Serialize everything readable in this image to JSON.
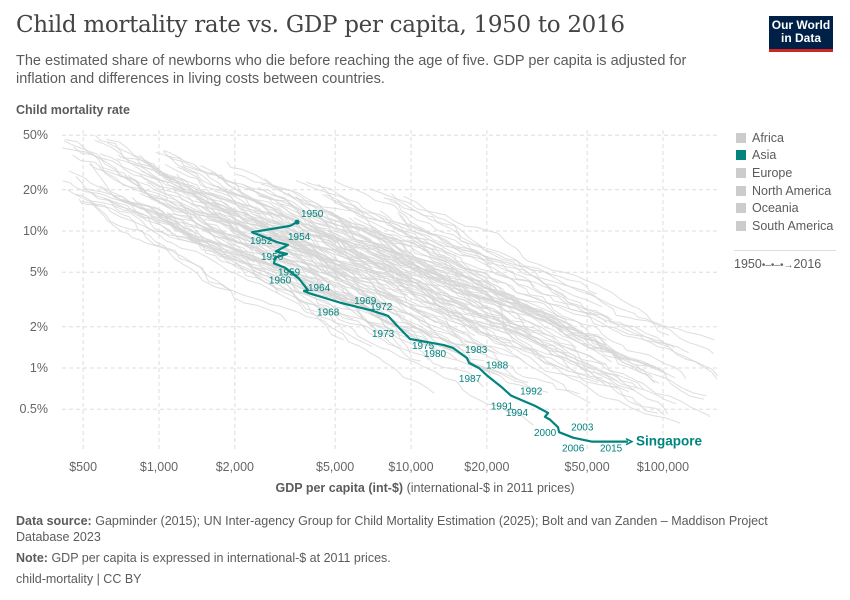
{
  "header": {
    "title": "Child mortality rate vs. GDP per capita, 1950 to 2016",
    "subtitle": "The estimated share of newborns who die before reaching the age of five. GDP per capita is adjusted for inflation and differences in living costs between countries.",
    "logo": "Our World in Data"
  },
  "legend": {
    "items": [
      {
        "label": "Africa",
        "color": "#cccccc"
      },
      {
        "label": "Asia",
        "color": "#00847e"
      },
      {
        "label": "Europe",
        "color": "#cccccc"
      },
      {
        "label": "North America",
        "color": "#cccccc"
      },
      {
        "label": "Oceania",
        "color": "#cccccc"
      },
      {
        "label": "South America",
        "color": "#cccccc"
      }
    ],
    "time_start": "1950",
    "time_end": "2016"
  },
  "footer": {
    "source_label": "Data source:",
    "source": "Gapminder (2015); UN Inter-agency Group for Child Mortality Estimation (2025); Bolt and van Zanden – Maddison Project Database 2023",
    "note_label": "Note:",
    "note": "GDP per capita is expressed in international-$ at 2011 prices.",
    "credit": "child-mortality | CC BY"
  },
  "chart_data": {
    "type": "line",
    "title": "Child mortality rate vs. GDP per capita, 1950 to 2016",
    "ylabel": "Child mortality rate",
    "xlabel_bold": "GDP per capita (int-$)",
    "xlabel_rest": "(international-$ in 2011 prices)",
    "x_scale": "log",
    "y_scale": "log",
    "xlim": [
      400,
      140000
    ],
    "ylim": [
      0.25,
      50
    ],
    "x_ticks": [
      {
        "v": 500,
        "label": "$500"
      },
      {
        "v": 1000,
        "label": "$1,000"
      },
      {
        "v": 2000,
        "label": "$2,000"
      },
      {
        "v": 5000,
        "label": "$5,000"
      },
      {
        "v": 10000,
        "label": "$10,000"
      },
      {
        "v": 20000,
        "label": "$20,000"
      },
      {
        "v": 50000,
        "label": "$50,000"
      },
      {
        "v": 100000,
        "label": "$100,000"
      }
    ],
    "y_ticks": [
      {
        "v": 50,
        "label": "50%"
      },
      {
        "v": 20,
        "label": "20%"
      },
      {
        "v": 10,
        "label": "10%"
      },
      {
        "v": 5,
        "label": "5%"
      },
      {
        "v": 2,
        "label": "2%"
      },
      {
        "v": 1,
        "label": "1%"
      },
      {
        "v": 0.5,
        "label": "0.5%"
      }
    ],
    "grid": true,
    "legend_position": "right",
    "highlight_color": "#00847e",
    "background_color": "#dddddd",
    "series": [
      {
        "name": "Singapore",
        "points": [
          {
            "year": 1950,
            "gdp": 3530,
            "cm": 11.6,
            "label": "1950"
          },
          {
            "year": 1951,
            "gdp": 3310,
            "cm": 10.9
          },
          {
            "year": 1952,
            "gdp": 2340,
            "cm": 9.8,
            "label": "1952"
          },
          {
            "year": 1953,
            "gdp": 2940,
            "cm": 8.3
          },
          {
            "year": 1954,
            "gdp": 3250,
            "cm": 7.9,
            "label": "1954"
          },
          {
            "year": 1955,
            "gdp": 2910,
            "cm": 7.1
          },
          {
            "year": 1956,
            "gdp": 3220,
            "cm": 6.8,
            "label": "1956"
          },
          {
            "year": 1957,
            "gdp": 2890,
            "cm": 6.4
          },
          {
            "year": 1959,
            "gdp": 2860,
            "cm": 5.8,
            "label": "1959"
          },
          {
            "year": 1960,
            "gdp": 3160,
            "cm": 5.4,
            "label": "1960"
          },
          {
            "year": 1962,
            "gdp": 3590,
            "cm": 4.5
          },
          {
            "year": 1963,
            "gdp": 3900,
            "cm": 3.7
          },
          {
            "year": 1964,
            "gdp": 3760,
            "cm": 3.65,
            "label": "1964"
          },
          {
            "year": 1965,
            "gdp": 3970,
            "cm": 3.5
          },
          {
            "year": 1968,
            "gdp": 5230,
            "cm": 3.0,
            "label": "1968"
          },
          {
            "year": 1969,
            "gdp": 6880,
            "cm": 2.65,
            "label": "1969"
          },
          {
            "year": 1972,
            "gdp": 8110,
            "cm": 2.4,
            "label": "1972"
          },
          {
            "year": 1973,
            "gdp": 8880,
            "cm": 2.0,
            "label": "1973"
          },
          {
            "year": 1975,
            "gdp": 9910,
            "cm": 1.63,
            "label": "1975"
          },
          {
            "year": 1980,
            "gdp": 13500,
            "cm": 1.47,
            "label": "1980"
          },
          {
            "year": 1982,
            "gdp": 14700,
            "cm": 1.4
          },
          {
            "year": 1983,
            "gdp": 16700,
            "cm": 1.18,
            "label": "1983"
          },
          {
            "year": 1985,
            "gdp": 17000,
            "cm": 1.09
          },
          {
            "year": 1987,
            "gdp": 18600,
            "cm": 1.0,
            "label": "1987"
          },
          {
            "year": 1988,
            "gdp": 20200,
            "cm": 0.87,
            "label": "1988"
          },
          {
            "year": 1990,
            "gdp": 22800,
            "cm": 0.73
          },
          {
            "year": 1991,
            "gdp": 24900,
            "cm": 0.63,
            "label": "1991"
          },
          {
            "year": 1992,
            "gdp": 27600,
            "cm": 0.58,
            "label": "1992"
          },
          {
            "year": 1994,
            "gdp": 31000,
            "cm": 0.53,
            "label": "1994"
          },
          {
            "year": 1996,
            "gdp": 35000,
            "cm": 0.47
          },
          {
            "year": 1997,
            "gdp": 34000,
            "cm": 0.44
          },
          {
            "year": 1998,
            "gdp": 35600,
            "cm": 0.42
          },
          {
            "year": 2000,
            "gdp": 38300,
            "cm": 0.37,
            "label": "2000"
          },
          {
            "year": 2001,
            "gdp": 38700,
            "cm": 0.34
          },
          {
            "year": 2003,
            "gdp": 44000,
            "cm": 0.31,
            "label": "2003"
          },
          {
            "year": 2006,
            "gdp": 52300,
            "cm": 0.29,
            "label": "2006"
          },
          {
            "year": 2015,
            "gdp": 72600,
            "cm": 0.29,
            "label": "2015"
          }
        ]
      }
    ]
  }
}
